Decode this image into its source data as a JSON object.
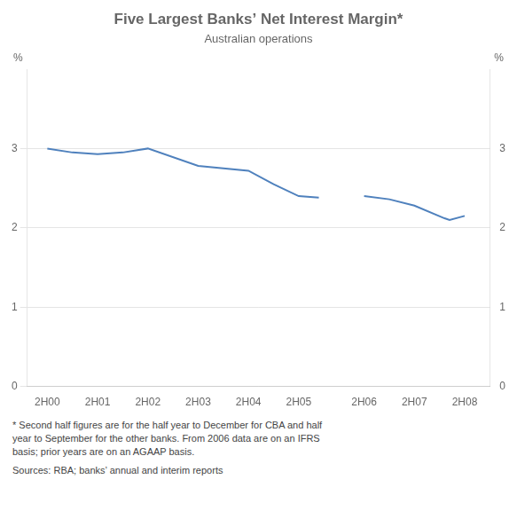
{
  "chart_data": {
    "type": "line",
    "title": "Five Largest Banks’ Net Interest Margin*",
    "subtitle": "Australian operations",
    "ylabel": "%",
    "y2label": "%",
    "footnotes": [
      "*  Second half figures are for the half year to December for CBA and half\nyear to September for the other banks. From 2006 data are on an IFRS\nbasis; prior years are on an AGAAP basis.",
      "Sources: RBA; banks’ annual and interim reports"
    ],
    "series": [
      {
        "color": "#4f81bd",
        "x": [
          0,
          0.5,
          1,
          1.5,
          2,
          3,
          4,
          4.5,
          5,
          5.4
        ],
        "values": [
          3.0,
          2.95,
          2.93,
          2.95,
          3.0,
          2.78,
          2.72,
          2.55,
          2.4,
          2.38
        ]
      },
      {
        "color": "#4f81bd",
        "x": [
          6.3,
          6.8,
          7.3,
          7.9,
          8.0,
          8.3
        ],
        "values": [
          2.4,
          2.36,
          2.28,
          2.12,
          2.1,
          2.15
        ]
      }
    ],
    "xlim": [
      -0.4,
      8.8
    ],
    "xticks": [
      {
        "value": 0,
        "label": "2H00"
      },
      {
        "value": 1,
        "label": "2H01"
      },
      {
        "value": 2,
        "label": "2H02"
      },
      {
        "value": 3,
        "label": "2H03"
      },
      {
        "value": 4,
        "label": "2H04"
      },
      {
        "value": 5,
        "label": "2H05"
      },
      {
        "value": 6.3,
        "label": "2H06"
      },
      {
        "value": 7.3,
        "label": "2H07"
      },
      {
        "value": 8.3,
        "label": "2H08"
      }
    ],
    "ylim": [
      0,
      4
    ],
    "yticks": [
      0,
      1,
      2,
      3
    ],
    "y2lim": [
      0,
      4
    ],
    "y2ticks": [
      0,
      1,
      2,
      3
    ],
    "grid": true
  }
}
